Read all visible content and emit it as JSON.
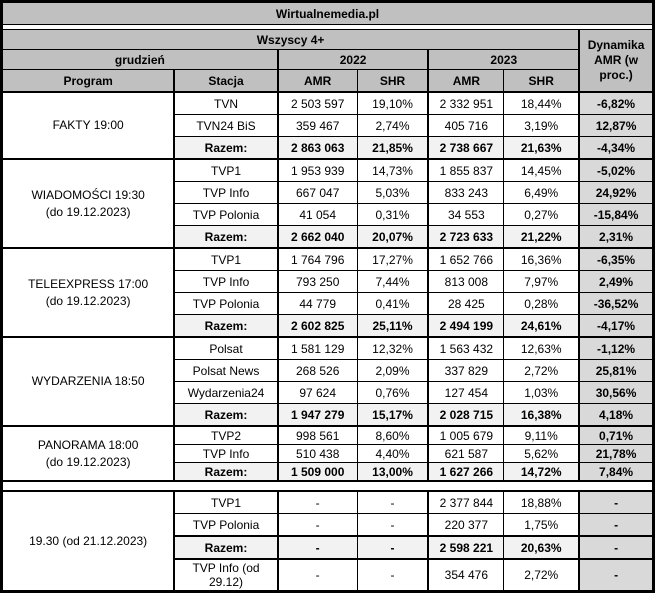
{
  "chart_data": {
    "type": "table",
    "title": "Wirtualnemedia.pl",
    "header": {
      "audience": "Wszyscy 4+",
      "dynamics_label": "Dynamika AMR (w proc.)",
      "month": "grudzień",
      "year_2022": "2022",
      "year_2023": "2023",
      "col_program": "Program",
      "col_station": "Stacja",
      "col_amr": "AMR",
      "col_shr": "SHR"
    },
    "blocks": [
      {
        "program": "FAKTY 19:00",
        "rows": [
          {
            "station": "TVN",
            "amr2022": "2 503 597",
            "shr2022": "19,10%",
            "amr2023": "2 332 951",
            "shr2023": "18,44%",
            "dyn": "-6,82%",
            "razem": false
          },
          {
            "station": "TVN24 BiS",
            "amr2022": "359 467",
            "shr2022": "2,74%",
            "amr2023": "405 716",
            "shr2023": "3,19%",
            "dyn": "12,87%",
            "razem": false
          },
          {
            "station": "Razem:",
            "amr2022": "2 863 063",
            "shr2022": "21,85%",
            "amr2023": "2 738 667",
            "shr2023": "21,63%",
            "dyn": "-4,34%",
            "razem": true
          }
        ]
      },
      {
        "program": "WIADOMOŚCI 19:30\n(do 19.12.2023)",
        "rows": [
          {
            "station": "TVP1",
            "amr2022": "1 953 939",
            "shr2022": "14,73%",
            "amr2023": "1 855 837",
            "shr2023": "14,45%",
            "dyn": "-5,02%",
            "razem": false
          },
          {
            "station": "TVP Info",
            "amr2022": "667 047",
            "shr2022": "5,03%",
            "amr2023": "833 243",
            "shr2023": "6,49%",
            "dyn": "24,92%",
            "razem": false
          },
          {
            "station": "TVP Polonia",
            "amr2022": "41 054",
            "shr2022": "0,31%",
            "amr2023": "34 553",
            "shr2023": "0,27%",
            "dyn": "-15,84%",
            "razem": false
          },
          {
            "station": "Razem:",
            "amr2022": "2 662 040",
            "shr2022": "20,07%",
            "amr2023": "2 723 633",
            "shr2023": "21,22%",
            "dyn": "2,31%",
            "razem": true
          }
        ]
      },
      {
        "program": "TELEEXPRESS 17:00\n(do 19.12.2023)",
        "rows": [
          {
            "station": "TVP1",
            "amr2022": "1 764 796",
            "shr2022": "17,27%",
            "amr2023": "1 652 766",
            "shr2023": "16,36%",
            "dyn": "-6,35%",
            "razem": false
          },
          {
            "station": "TVP Info",
            "amr2022": "793 250",
            "shr2022": "7,44%",
            "amr2023": "813 008",
            "shr2023": "7,97%",
            "dyn": "2,49%",
            "razem": false
          },
          {
            "station": "TVP Polonia",
            "amr2022": "44 779",
            "shr2022": "0,41%",
            "amr2023": "28 425",
            "shr2023": "0,28%",
            "dyn": "-36,52%",
            "razem": false
          },
          {
            "station": "Razem:",
            "amr2022": "2 602 825",
            "shr2022": "25,11%",
            "amr2023": "2 494 199",
            "shr2023": "24,61%",
            "dyn": "-4,17%",
            "razem": true
          }
        ]
      },
      {
        "program": "WYDARZENIA 18:50",
        "rows": [
          {
            "station": "Polsat",
            "amr2022": "1 581 129",
            "shr2022": "12,32%",
            "amr2023": "1 563 432",
            "shr2023": "12,63%",
            "dyn": "-1,12%",
            "razem": false
          },
          {
            "station": "Polsat News",
            "amr2022": "268 526",
            "shr2022": "2,09%",
            "amr2023": "337 829",
            "shr2023": "2,72%",
            "dyn": "25,81%",
            "razem": false
          },
          {
            "station": "Wydarzenia24",
            "amr2022": "97 624",
            "shr2022": "0,76%",
            "amr2023": "127 454",
            "shr2023": "1,03%",
            "dyn": "30,56%",
            "razem": false
          },
          {
            "station": "Razem:",
            "amr2022": "1 947 279",
            "shr2022": "15,17%",
            "amr2023": "2 028 715",
            "shr2023": "16,38%",
            "dyn": "4,18%",
            "razem": true
          }
        ]
      },
      {
        "program": "PANORAMA 18:00\n(do 19.12.2023)",
        "short_rows": true,
        "spacer_after": true,
        "rows": [
          {
            "station": "TVP2",
            "amr2022": "998 561",
            "shr2022": "8,60%",
            "amr2023": "1 005 679",
            "shr2023": "9,11%",
            "dyn": "0,71%",
            "razem": false
          },
          {
            "station": "TVP Info",
            "amr2022": "510 438",
            "shr2022": "4,40%",
            "amr2023": "621 587",
            "shr2023": "5,62%",
            "dyn": "21,78%",
            "razem": false
          },
          {
            "station": "Razem:",
            "amr2022": "1 509 000",
            "shr2022": "13,00%",
            "amr2023": "1 627 266",
            "shr2023": "14,72%",
            "dyn": "7,84%",
            "razem": true
          }
        ]
      },
      {
        "program": "19.30 (od 21.12.2023)",
        "rows": [
          {
            "station": "TVP1",
            "amr2022": "-",
            "shr2022": "-",
            "amr2023": "2 377 844",
            "shr2023": "18,88%",
            "dyn": "-",
            "razem": false
          },
          {
            "station": "TVP Polonia",
            "amr2022": "-",
            "shr2022": "-",
            "amr2023": "220 377",
            "shr2023": "1,75%",
            "dyn": "-",
            "razem": false
          },
          {
            "station": "Razem:",
            "amr2022": "-",
            "shr2022": "-",
            "amr2023": "2 598 221",
            "shr2023": "20,63%",
            "dyn": "-",
            "razem": true
          },
          {
            "station": "TVP Info (od 29.12)",
            "amr2022": "-",
            "shr2022": "-",
            "amr2023": "354 476",
            "shr2023": "2,72%",
            "dyn": "-",
            "razem": false
          }
        ]
      }
    ]
  },
  "colors": {
    "header_bg": "#c0c0c0",
    "razem_bg": "#f2f2f2",
    "dynamics_bg": "#d9d9d9",
    "border": "#000000"
  }
}
